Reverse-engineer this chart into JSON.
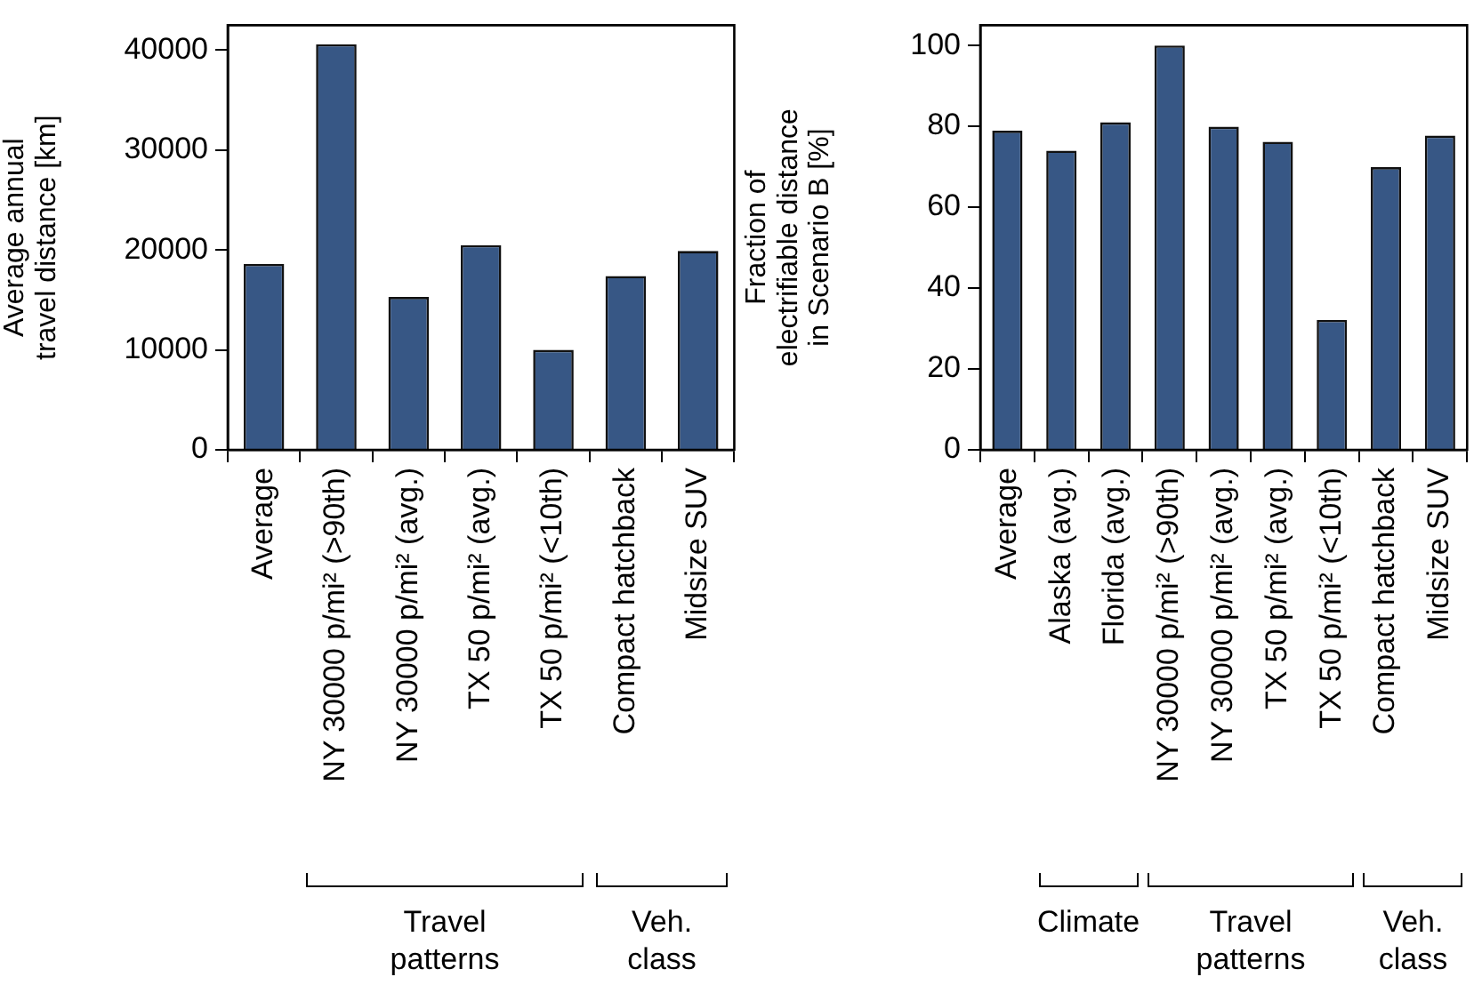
{
  "chart_data": [
    {
      "type": "bar",
      "ylabel": "Average annual\ntravel distance [km]",
      "categories": [
        "Average",
        "NY 30000 p/mi² (>90th)",
        "NY 30000 p/mi² (avg.)",
        "TX 50 p/mi² (avg.)",
        "TX 50 p/mi² (<10th)",
        "Compact hatchback",
        "Midsize SUV"
      ],
      "values": [
        18600,
        40600,
        15300,
        20500,
        10000,
        17400,
        19900
      ],
      "color": "#375785",
      "ylim": [
        0,
        42500
      ],
      "yticks": [
        0,
        10000,
        20000,
        30000,
        40000
      ],
      "grid": false,
      "legend": false,
      "annotations": [
        "Travel patterns",
        "Veh. class"
      ]
    },
    {
      "type": "bar",
      "ylabel": "Fraction of\nelectrifiable distance\nin Scenario B [%]",
      "categories": [
        "Average",
        "Alaska (avg.)",
        "Florida (avg.)",
        "NY 30000 p/mi² (>90th)",
        "NY 30000 p/mi² (avg.)",
        "TX 50 p/mi² (avg.)",
        "TX 50 p/mi² (<10th)",
        "Compact hatchback",
        "Midsize SUV"
      ],
      "values": [
        78.9,
        74.0,
        81.0,
        100,
        79.9,
        76.2,
        32.1,
        69.9,
        77.7
      ],
      "color": "#375785",
      "ylim": [
        0,
        105
      ],
      "yticks": [
        0,
        20,
        40,
        60,
        80,
        100
      ],
      "grid": false,
      "legend": false,
      "annotations": [
        "Climate",
        "Travel patterns",
        "Veh. class"
      ]
    }
  ]
}
